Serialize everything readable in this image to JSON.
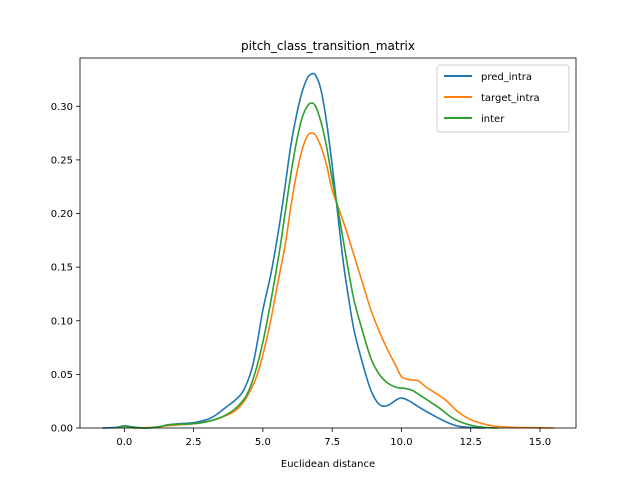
{
  "chart_data": {
    "type": "line",
    "title": "pitch_class_transition_matrix",
    "xlabel": "Euclidean distance",
    "ylabel": "",
    "xlim": [
      -1.6,
      16.3
    ],
    "ylim": [
      0.0,
      0.345
    ],
    "xticks": [
      0.0,
      2.5,
      5.0,
      7.5,
      10.0,
      12.5,
      15.0
    ],
    "xtick_labels": [
      "0.0",
      "2.5",
      "5.0",
      "7.5",
      "10.0",
      "12.5",
      "15.0"
    ],
    "yticks": [
      0.0,
      0.05,
      0.1,
      0.15,
      0.2,
      0.25,
      0.3
    ],
    "ytick_labels": [
      "0.00",
      "0.05",
      "0.10",
      "0.15",
      "0.20",
      "0.25",
      "0.30"
    ],
    "grid": false,
    "legend_position": "top-right",
    "series": [
      {
        "name": "pred_intra",
        "color": "#1f77b4",
        "points": [
          [
            -0.8,
            0.0
          ],
          [
            -0.3,
            0.0005
          ],
          [
            0.0,
            0.002
          ],
          [
            0.3,
            0.001
          ],
          [
            0.7,
            0.0
          ],
          [
            1.2,
            0.0008
          ],
          [
            1.6,
            0.003
          ],
          [
            2.0,
            0.004
          ],
          [
            2.5,
            0.005
          ],
          [
            3.0,
            0.008
          ],
          [
            3.3,
            0.012
          ],
          [
            3.7,
            0.02
          ],
          [
            4.0,
            0.026
          ],
          [
            4.3,
            0.035
          ],
          [
            4.6,
            0.055
          ],
          [
            4.8,
            0.08
          ],
          [
            5.0,
            0.11
          ],
          [
            5.3,
            0.145
          ],
          [
            5.6,
            0.19
          ],
          [
            5.8,
            0.225
          ],
          [
            6.0,
            0.262
          ],
          [
            6.2,
            0.29
          ],
          [
            6.4,
            0.312
          ],
          [
            6.6,
            0.326
          ],
          [
            6.75,
            0.33
          ],
          [
            6.9,
            0.329
          ],
          [
            7.1,
            0.315
          ],
          [
            7.3,
            0.285
          ],
          [
            7.5,
            0.245
          ],
          [
            7.7,
            0.2
          ],
          [
            7.9,
            0.155
          ],
          [
            8.1,
            0.12
          ],
          [
            8.3,
            0.09
          ],
          [
            8.6,
            0.06
          ],
          [
            8.9,
            0.035
          ],
          [
            9.2,
            0.022
          ],
          [
            9.5,
            0.021
          ],
          [
            9.8,
            0.026
          ],
          [
            10.0,
            0.028
          ],
          [
            10.3,
            0.025
          ],
          [
            10.6,
            0.02
          ],
          [
            11.0,
            0.014
          ],
          [
            11.5,
            0.007
          ],
          [
            12.0,
            0.002
          ],
          [
            12.5,
            0.0005
          ],
          [
            13.0,
            0.0
          ]
        ]
      },
      {
        "name": "target_intra",
        "color": "#ff7f0e",
        "points": [
          [
            0.3,
            0.0
          ],
          [
            1.0,
            0.0005
          ],
          [
            1.5,
            0.002
          ],
          [
            2.0,
            0.003
          ],
          [
            2.5,
            0.004
          ],
          [
            3.0,
            0.006
          ],
          [
            3.5,
            0.01
          ],
          [
            4.0,
            0.016
          ],
          [
            4.4,
            0.028
          ],
          [
            4.8,
            0.05
          ],
          [
            5.2,
            0.09
          ],
          [
            5.5,
            0.13
          ],
          [
            5.8,
            0.17
          ],
          [
            6.0,
            0.205
          ],
          [
            6.2,
            0.235
          ],
          [
            6.4,
            0.258
          ],
          [
            6.6,
            0.272
          ],
          [
            6.75,
            0.275
          ],
          [
            6.9,
            0.273
          ],
          [
            7.1,
            0.262
          ],
          [
            7.3,
            0.245
          ],
          [
            7.5,
            0.222
          ],
          [
            7.8,
            0.2
          ],
          [
            8.0,
            0.185
          ],
          [
            8.3,
            0.16
          ],
          [
            8.6,
            0.135
          ],
          [
            8.9,
            0.11
          ],
          [
            9.2,
            0.09
          ],
          [
            9.5,
            0.073
          ],
          [
            9.8,
            0.058
          ],
          [
            10.0,
            0.048
          ],
          [
            10.3,
            0.045
          ],
          [
            10.6,
            0.044
          ],
          [
            10.9,
            0.038
          ],
          [
            11.2,
            0.033
          ],
          [
            11.6,
            0.026
          ],
          [
            12.0,
            0.016
          ],
          [
            12.4,
            0.009
          ],
          [
            12.8,
            0.005
          ],
          [
            13.3,
            0.002
          ],
          [
            14.0,
            0.0007
          ],
          [
            15.0,
            0.0002
          ],
          [
            15.5,
            0.0
          ]
        ]
      },
      {
        "name": "inter",
        "color": "#2ca02c",
        "points": [
          [
            -0.3,
            0.0
          ],
          [
            0.0,
            0.0015
          ],
          [
            0.3,
            0.0005
          ],
          [
            0.8,
            0.0
          ],
          [
            1.2,
            0.001
          ],
          [
            1.6,
            0.003
          ],
          [
            2.0,
            0.0035
          ],
          [
            2.5,
            0.004
          ],
          [
            3.0,
            0.006
          ],
          [
            3.5,
            0.01
          ],
          [
            4.0,
            0.018
          ],
          [
            4.4,
            0.03
          ],
          [
            4.7,
            0.05
          ],
          [
            5.0,
            0.08
          ],
          [
            5.3,
            0.12
          ],
          [
            5.6,
            0.165
          ],
          [
            5.8,
            0.2
          ],
          [
            6.0,
            0.235
          ],
          [
            6.2,
            0.265
          ],
          [
            6.4,
            0.288
          ],
          [
            6.6,
            0.3
          ],
          [
            6.75,
            0.303
          ],
          [
            6.9,
            0.3
          ],
          [
            7.1,
            0.285
          ],
          [
            7.3,
            0.262
          ],
          [
            7.5,
            0.232
          ],
          [
            7.7,
            0.205
          ],
          [
            7.9,
            0.175
          ],
          [
            8.1,
            0.145
          ],
          [
            8.3,
            0.118
          ],
          [
            8.6,
            0.09
          ],
          [
            8.9,
            0.065
          ],
          [
            9.2,
            0.05
          ],
          [
            9.5,
            0.042
          ],
          [
            9.8,
            0.038
          ],
          [
            10.1,
            0.037
          ],
          [
            10.4,
            0.035
          ],
          [
            10.7,
            0.03
          ],
          [
            11.0,
            0.025
          ],
          [
            11.4,
            0.018
          ],
          [
            11.8,
            0.01
          ],
          [
            12.2,
            0.005
          ],
          [
            12.6,
            0.002
          ],
          [
            13.0,
            0.0005
          ],
          [
            13.5,
            0.0
          ]
        ]
      }
    ]
  }
}
